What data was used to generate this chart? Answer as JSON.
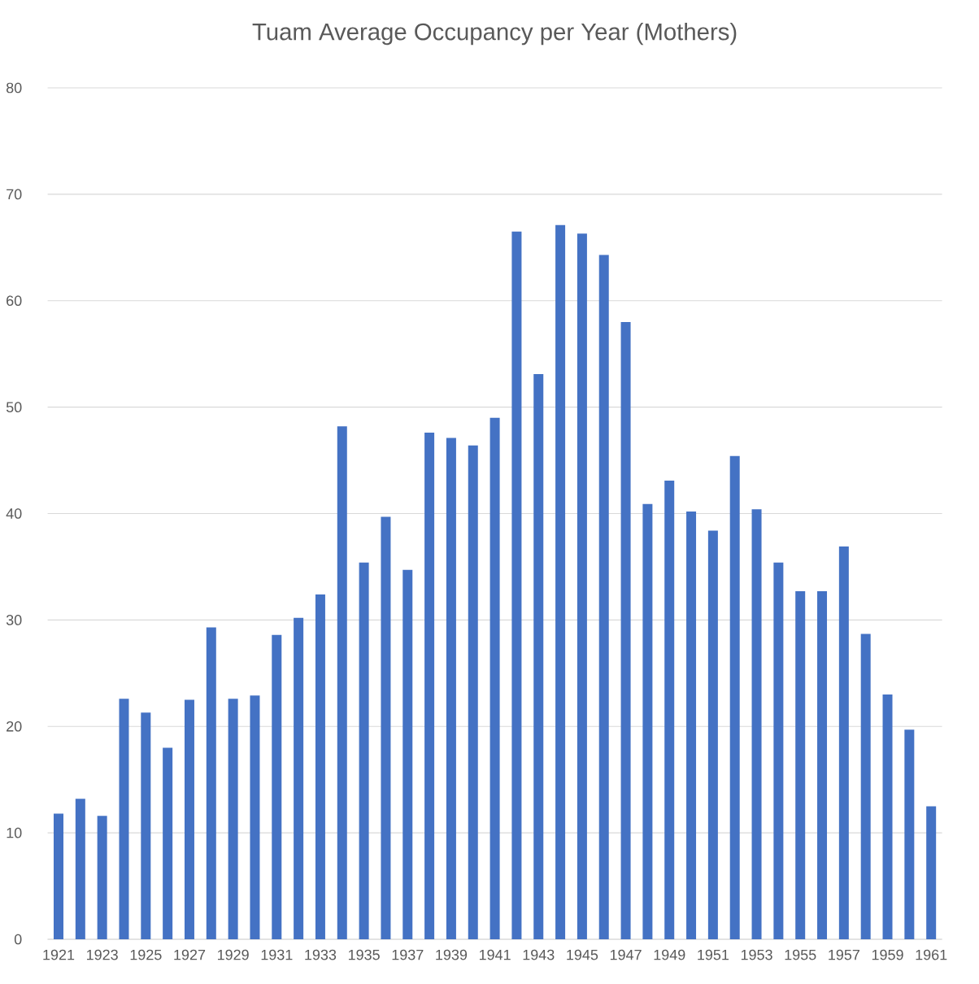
{
  "chart_data": {
    "type": "bar",
    "title": "Tuam Average Occupancy per Year (Mothers)",
    "categories": [
      "1921",
      null,
      "1923",
      null,
      "1925",
      null,
      "1927",
      null,
      "1929",
      null,
      "1931",
      null,
      "1933",
      null,
      "1935",
      null,
      "1937",
      null,
      "1939",
      null,
      "1941",
      null,
      "1943",
      null,
      "1945",
      null,
      "1947",
      null,
      "1949",
      null,
      "1951",
      null,
      "1953",
      null,
      "1955",
      null,
      "1957",
      null,
      "1959",
      null,
      "1961"
    ],
    "values": [
      11.8,
      13.2,
      11.6,
      22.6,
      21.3,
      18.0,
      22.5,
      29.3,
      22.6,
      22.9,
      28.6,
      30.2,
      32.4,
      48.2,
      35.4,
      39.7,
      34.7,
      47.6,
      47.1,
      46.4,
      49.0,
      66.5,
      53.1,
      67.1,
      66.3,
      64.3,
      58.0,
      40.9,
      43.1,
      40.2,
      38.4,
      45.4,
      40.4,
      35.4,
      32.7,
      32.7,
      36.9,
      28.7,
      23.0,
      19.7,
      12.5
    ],
    "color": "#4472c4",
    "ylim": [
      0,
      80
    ],
    "yticks": [
      0,
      10,
      20,
      30,
      40,
      50,
      60,
      70,
      80
    ],
    "grid": "y"
  }
}
